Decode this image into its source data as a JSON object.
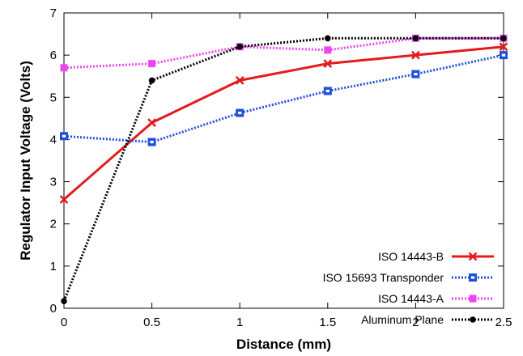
{
  "chart_data": {
    "type": "line",
    "title": "",
    "xlabel": "Distance (mm)",
    "ylabel": "Regulator Input Voltage (Volts)",
    "xlim": [
      0,
      2.5
    ],
    "ylim": [
      0,
      7
    ],
    "xticks": [
      "0",
      "0.5",
      "1",
      "1.5",
      "2",
      "2.5"
    ],
    "yticks": [
      "0",
      "1",
      "2",
      "3",
      "4",
      "5",
      "6",
      "7"
    ],
    "grid": false,
    "legend_position": "bottom-right",
    "x": [
      0,
      0.5,
      1,
      1.5,
      2,
      2.5
    ],
    "series": [
      {
        "name": "ISO 14443-B",
        "values": [
          2.58,
          4.4,
          5.4,
          5.8,
          6.0,
          6.2
        ],
        "color": "#e41a1c",
        "style": "solid",
        "marker": "x"
      },
      {
        "name": "ISO 15693 Transponder",
        "values": [
          4.08,
          3.94,
          4.63,
          5.15,
          5.55,
          6.0
        ],
        "color": "#1f4fd8",
        "style": "dotted",
        "marker": "square-open"
      },
      {
        "name": "ISO 14443-A",
        "values": [
          5.7,
          5.8,
          6.2,
          6.12,
          6.4,
          6.4
        ],
        "color": "#ee44ee",
        "style": "dotted",
        "marker": "square-filled"
      },
      {
        "name": "Aluminum Plane",
        "values": [
          0.17,
          5.4,
          6.2,
          6.4,
          6.4,
          6.4
        ],
        "color": "#000000",
        "style": "dotted",
        "marker": "circle"
      }
    ]
  }
}
